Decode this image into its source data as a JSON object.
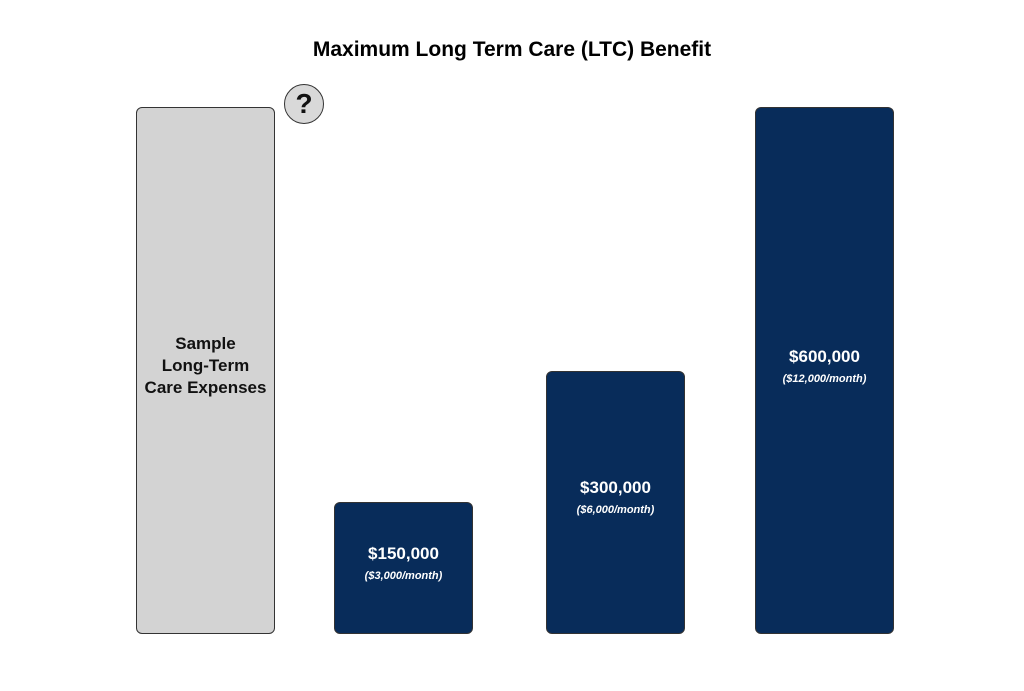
{
  "chart_data": {
    "type": "bar",
    "title": "Maximum Long Term Care (LTC) Benefit",
    "categories": [
      "Sample\nLong-Term\nCare Expenses",
      null,
      null,
      null
    ],
    "values": [
      600000,
      150000,
      300000,
      600000
    ],
    "value_labels": [
      null,
      "$150,000",
      "$300,000",
      "$600,000"
    ],
    "monthly_labels": [
      null,
      "($3,000/month)",
      "($6,000/month)",
      "($12,000/month)"
    ],
    "colors": [
      "#d3d3d3",
      "#082c5a",
      "#082c5a",
      "#082c5a"
    ],
    "annotation": "?",
    "ylim": [
      0,
      600000
    ]
  }
}
